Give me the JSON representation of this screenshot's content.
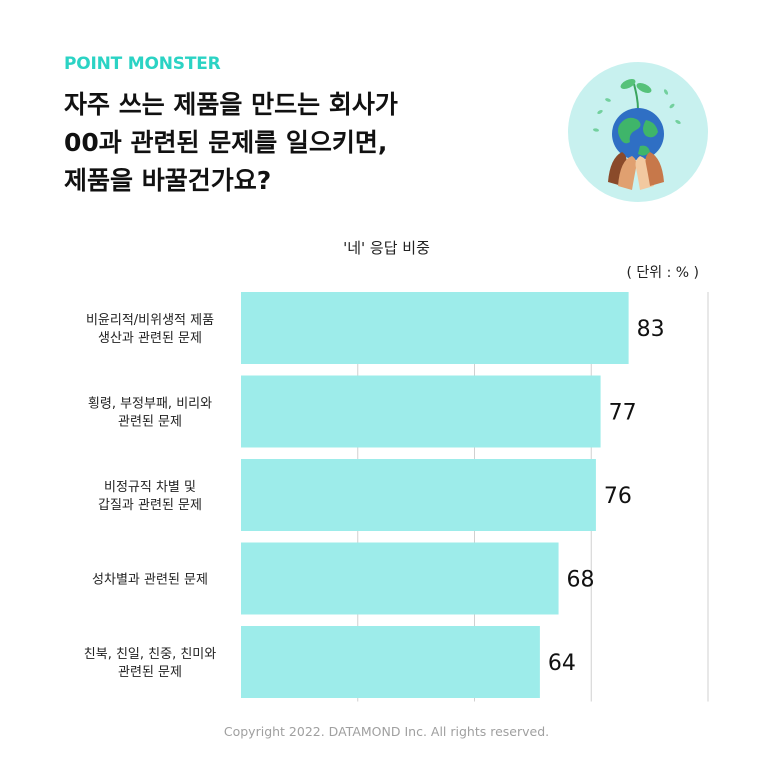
{
  "brand": "POINT MONSTER",
  "headline": [
    "자주 쓰는 제품을 만드는 회사가",
    "00과 관련된 문제를 일으키면,",
    "제품을 바꿀건가요?"
  ],
  "footer": "Copyright 2022. DATAMOND Inc. All rights reserved.",
  "illustration": "hands-holding-globe-with-sprout",
  "colors": {
    "brand": "#2bd3c4",
    "bar": "#9decea",
    "grid": "#d0d0d0",
    "illus_bg": "#c8f1ef"
  },
  "chart_data": {
    "type": "bar",
    "orientation": "horizontal",
    "title": "'네' 응답 비중",
    "unit_label": "( 단위 : % )",
    "categories": [
      [
        "비윤리적/비위생적 제품",
        "생산과 관련된 문제"
      ],
      [
        "횡령, 부정부패, 비리와",
        "관련된 문제"
      ],
      [
        "비정규직 차별 및",
        "갑질과 관련된 문제"
      ],
      [
        "성차별과 관련된 문제"
      ],
      [
        "친북, 친일, 친중, 친미와",
        "관련된 문제"
      ]
    ],
    "values": [
      83,
      77,
      76,
      68,
      64
    ],
    "xlim": [
      0,
      100
    ],
    "grid": true
  }
}
